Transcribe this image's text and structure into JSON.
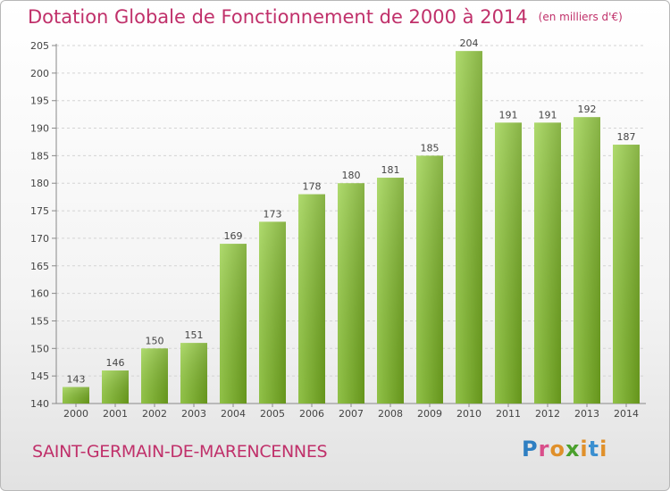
{
  "title": "Dotation Globale de Fonctionnement de 2000 à 2014",
  "unit_note": "(en milliers d'€)",
  "subject": "SAINT-GERMAIN-DE-MARENCENNES",
  "logo": {
    "p": "P",
    "r": "r",
    "o": "o",
    "x": "x",
    "i": "i",
    "t": "t",
    "i2": "i"
  },
  "colors": {
    "bar_light": "#9dd24e",
    "bar_dark": "#6ea21e",
    "title": "#c0306a"
  },
  "chart_data": {
    "type": "bar",
    "title": "Dotation Globale de Fonctionnement de 2000 à 2014",
    "categories": [
      "2000",
      "2001",
      "2002",
      "2003",
      "2004",
      "2005",
      "2006",
      "2007",
      "2008",
      "2009",
      "2010",
      "2011",
      "2012",
      "2013",
      "2014"
    ],
    "values": [
      143,
      146,
      150,
      151,
      169,
      173,
      178,
      180,
      181,
      185,
      204,
      191,
      191,
      192,
      187
    ],
    "ylim": [
      140,
      205
    ],
    "yticks": [
      140,
      145,
      150,
      155,
      160,
      165,
      170,
      175,
      180,
      185,
      190,
      195,
      200,
      205
    ],
    "grid": true
  }
}
